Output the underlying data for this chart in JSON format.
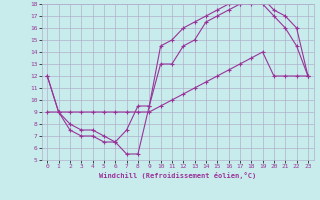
{
  "xlabel": "Windchill (Refroidissement éolien,°C)",
  "bg_color": "#c8ecec",
  "grid_color": "#b0b0cc",
  "line_color": "#993399",
  "xlim": [
    -0.5,
    23.5
  ],
  "ylim": [
    5,
    18
  ],
  "xticks": [
    0,
    1,
    2,
    3,
    4,
    5,
    6,
    7,
    8,
    9,
    10,
    11,
    12,
    13,
    14,
    15,
    16,
    17,
    18,
    19,
    20,
    21,
    22,
    23
  ],
  "yticks": [
    5,
    6,
    7,
    8,
    9,
    10,
    11,
    12,
    13,
    14,
    15,
    16,
    17,
    18
  ],
  "line1_x": [
    0,
    1,
    2,
    3,
    4,
    5,
    6,
    7,
    8,
    9,
    10,
    11,
    12,
    13,
    14,
    15,
    16,
    17,
    18,
    19,
    20,
    21,
    22,
    23
  ],
  "line1_y": [
    12,
    9,
    7.5,
    7,
    7,
    6.5,
    6.5,
    5.5,
    5.5,
    9.5,
    13,
    13,
    14.5,
    15,
    16.5,
    17,
    17.5,
    18,
    18,
    18,
    17,
    16,
    14.5,
    12
  ],
  "line2_x": [
    0,
    1,
    2,
    3,
    4,
    5,
    6,
    7,
    8,
    9,
    10,
    11,
    12,
    13,
    14,
    15,
    16,
    17,
    18,
    19,
    20,
    21,
    22,
    23
  ],
  "line2_y": [
    12,
    9,
    8,
    7.5,
    7.5,
    7,
    6.5,
    7.5,
    9.5,
    9.5,
    14.5,
    15,
    16,
    16.5,
    17,
    17.5,
    18,
    18,
    18.5,
    18.5,
    17.5,
    17,
    16,
    12
  ],
  "line3_x": [
    0,
    1,
    2,
    3,
    4,
    5,
    6,
    7,
    8,
    9,
    10,
    11,
    12,
    13,
    14,
    15,
    16,
    17,
    18,
    19,
    20,
    21,
    22,
    23
  ],
  "line3_y": [
    9,
    9,
    9,
    9,
    9,
    9,
    9,
    9,
    9,
    9,
    9.5,
    10,
    10.5,
    11,
    11.5,
    12,
    12.5,
    13,
    13.5,
    14,
    12,
    12,
    12,
    12
  ],
  "marker": "+"
}
